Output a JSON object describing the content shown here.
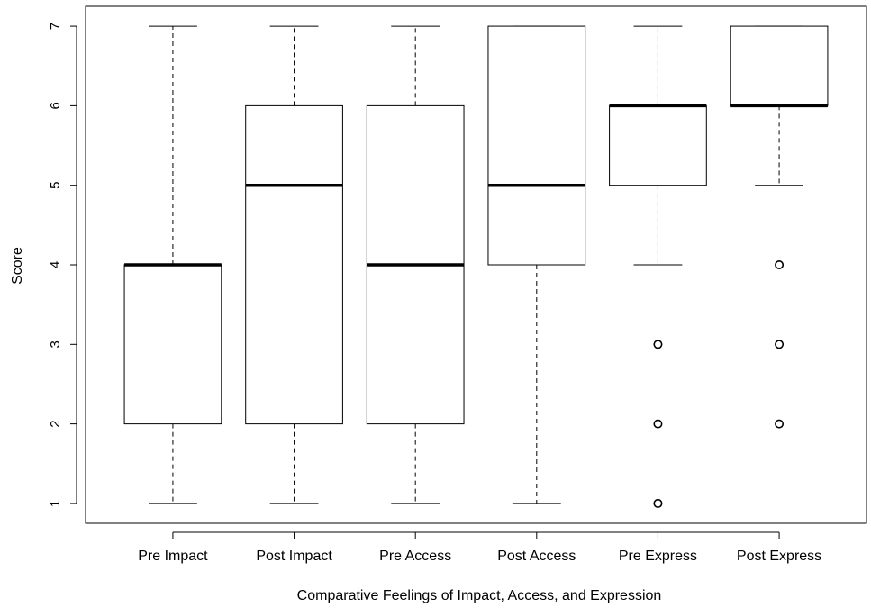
{
  "chart_data": {
    "type": "boxplot",
    "title": "",
    "xlabel": "Comparative Feelings of Impact, Access, and Expression",
    "ylabel": "Score",
    "ylim": [
      0.75,
      7.25
    ],
    "y_ticks": [
      1,
      2,
      3,
      4,
      5,
      6,
      7
    ],
    "grid": false,
    "categories": [
      "Pre Impact",
      "Post Impact",
      "Pre Access",
      "Post Access",
      "Pre Express",
      "Post Express"
    ],
    "boxes": [
      {
        "name": "Pre Impact",
        "whisker_low": 1,
        "q1": 2,
        "median": 4,
        "q3": 4,
        "whisker_high": 7,
        "outliers": []
      },
      {
        "name": "Post Impact",
        "whisker_low": 1,
        "q1": 2,
        "median": 5,
        "q3": 6,
        "whisker_high": 7,
        "outliers": []
      },
      {
        "name": "Pre Access",
        "whisker_low": 1,
        "q1": 2,
        "median": 4,
        "q3": 6,
        "whisker_high": 7,
        "outliers": []
      },
      {
        "name": "Post Access",
        "whisker_low": 1,
        "q1": 4,
        "median": 5,
        "q3": 7,
        "whisker_high": 7,
        "outliers": []
      },
      {
        "name": "Pre Express",
        "whisker_low": 4,
        "q1": 5,
        "median": 6,
        "q3": 6,
        "whisker_high": 7,
        "outliers": [
          3,
          2,
          1
        ]
      },
      {
        "name": "Post Express",
        "whisker_low": 5,
        "q1": 6,
        "median": 6,
        "q3": 7,
        "whisker_high": 7,
        "outliers": [
          4,
          3,
          2
        ]
      }
    ]
  }
}
